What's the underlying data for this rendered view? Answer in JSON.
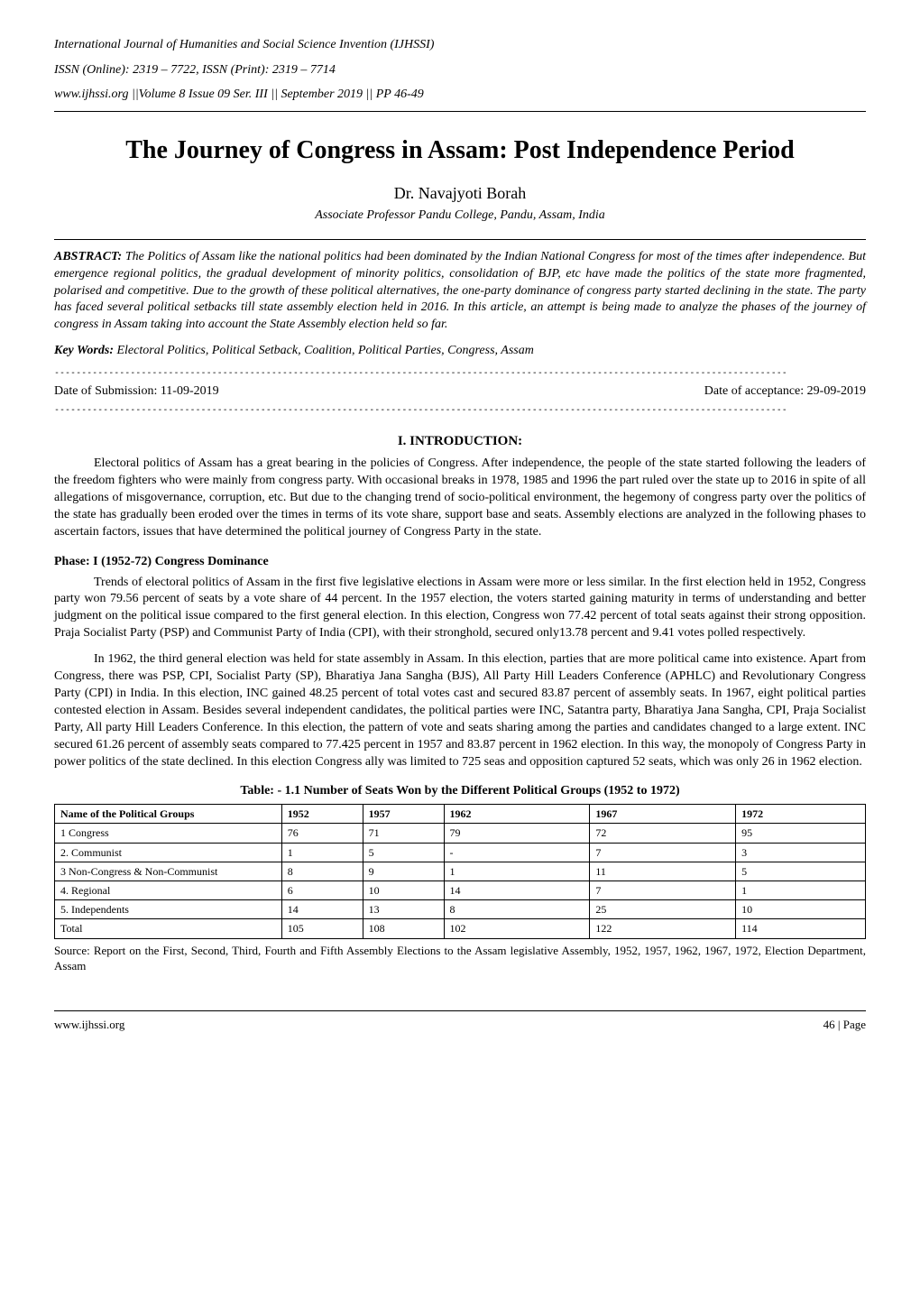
{
  "journal": {
    "name": "International Journal of Humanities and Social Science Invention (IJHSSI)",
    "issn": "ISSN (Online): 2319 – 7722, ISSN (Print): 2319 – 7714",
    "volume": "www.ijhssi.org ||Volume 8 Issue 09 Ser. III || September 2019 || PP 46-49"
  },
  "title": "The Journey of Congress in Assam: Post Independence Period",
  "author": "Dr. Navajyoti Borah",
  "affiliation": "Associate Professor Pandu College, Pandu, Assam, India",
  "abstract_label": "ABSTRACT:",
  "abstract_text": " The Politics of Assam like the national politics had been dominated by the Indian National Congress for most of the times after independence. But emergence regional politics, the gradual development of minority politics, consolidation of BJP, etc have made the politics of the state more fragmented, polarised and competitive. Due to the growth of these political alternatives, the one-party dominance of congress party started declining in the state. The party has faced several political setbacks till state assembly election held in 2016. In this article, an attempt is being made to analyze the phases of the journey of congress in Assam taking into account the State Assembly election held so far.",
  "keywords_label": "Key Words:",
  "keywords_text": " Electoral Politics, Political Setback, Coalition, Political Parties, Congress, Assam",
  "dash_line": "---------------------------------------------------------------------------------------------------------------------------------------",
  "submission_date": "Date of Submission: 11-09-2019",
  "acceptance_date": "Date of acceptance: 29-09-2019",
  "section1_heading": "I.    INTRODUCTION:",
  "intro_para": "Electoral politics of Assam has a great bearing in the policies of Congress. After independence, the people of the state started following the leaders of the freedom fighters who were mainly from congress party. With occasional breaks in 1978, 1985 and 1996 the part ruled over the state up to 2016 in spite of all allegations of misgovernance, corruption, etc. But due to the changing trend of socio-political environment, the hegemony of congress party over the politics of the state has gradually been eroded over the times in terms of its vote share, support base and seats. Assembly elections are analyzed in the following phases to ascertain factors, issues that have determined the political journey of Congress Party in the state.",
  "phase_heading": "Phase: I (1952-72) Congress Dominance",
  "phase_para1": "Trends of electoral politics of Assam in the first five legislative elections in Assam were more or less similar. In the first election held in 1952, Congress party won 79.56 percent of seats by a vote share of 44 percent. In the 1957 election, the voters started gaining maturity in terms of understanding and better judgment on the political issue compared to the first general election. In this election, Congress won 77.42 percent of total seats against their strong opposition. Praja Socialist Party (PSP) and Communist Party of India (CPI), with their stronghold, secured only13.78 percent and 9.41 votes polled respectively.",
  "phase_para2": "In 1962, the third general election was held for state assembly in Assam. In this election, parties that are more political came into existence. Apart from Congress, there was PSP, CPI, Socialist Party (SP), Bharatiya Jana Sangha (BJS), All Party Hill Leaders Conference (APHLC) and Revolutionary Congress Party (CPI) in India. In this election, INC gained 48.25 percent of total votes cast and secured 83.87 percent of assembly seats. In 1967, eight political parties contested election in Assam. Besides several independent candidates, the political parties were INC, Satantra party, Bharatiya Jana Sangha, CPI, Praja Socialist Party, All party Hill Leaders Conference. In this election, the pattern of vote and seats sharing among the parties and candidates changed to a large extent. INC secured 61.26 percent of assembly seats compared to 77.425 percent in 1957 and 83.87 percent in 1962 election. In this way, the monopoly of Congress Party in power politics of the state declined. In this election Congress ally was limited to 725 seas and opposition captured 52 seats, which was only 26 in 1962 election.",
  "table": {
    "caption": "Table: - 1.1 Number of Seats Won by the Different Political Groups (1952 to 1972)",
    "columns": [
      "Name of the Political Groups",
      "1952",
      "1957",
      "1962",
      "1967",
      "1972"
    ],
    "rows": [
      [
        "1 Congress",
        "76",
        "71",
        "79",
        "72",
        "95"
      ],
      [
        "2. Communist",
        "1",
        "5",
        "-",
        "7",
        "3"
      ],
      [
        "3 Non-Congress & Non-Communist",
        "8",
        "9",
        "1",
        "11",
        "5"
      ],
      [
        "4. Regional",
        "6",
        "10",
        "14",
        "7",
        "1"
      ],
      [
        "5. Independents",
        "14",
        "13",
        "8",
        "25",
        "10"
      ],
      [
        "Total",
        "105",
        "108",
        "102",
        "122",
        "114"
      ]
    ],
    "col_widths": [
      "28%",
      "10%",
      "10%",
      "18%",
      "18%",
      "16%"
    ],
    "header_fontsize": 12,
    "body_fontsize": 12,
    "border_color": "#000000",
    "background_color": "#ffffff"
  },
  "source_note": "Source: Report on the First, Second, Third, Fourth and Fifth Assembly Elections to the Assam legislative Assembly, 1952, 1957, 1962, 1967, 1972, Election Department, Assam",
  "footer_site": "www.ijhssi.org",
  "footer_page": "46 | Page"
}
